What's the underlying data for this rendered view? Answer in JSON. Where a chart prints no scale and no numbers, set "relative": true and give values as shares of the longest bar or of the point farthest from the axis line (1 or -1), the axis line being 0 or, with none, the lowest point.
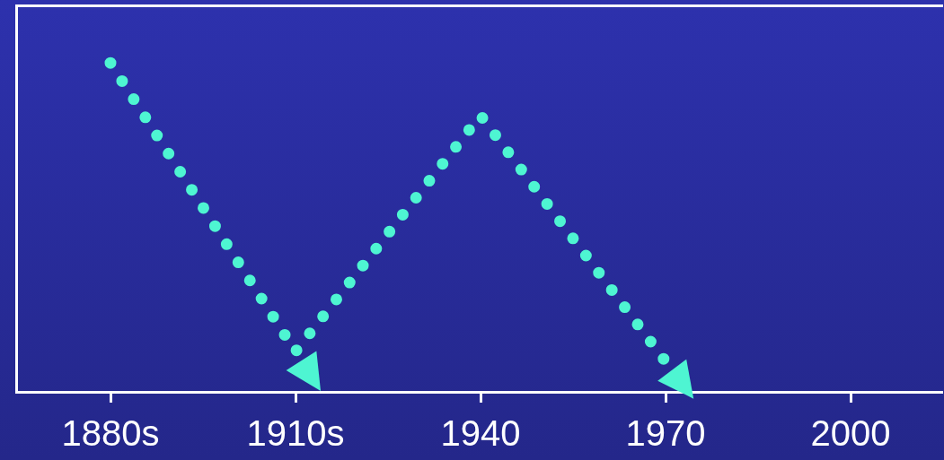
{
  "chart_data": {
    "type": "line",
    "relative": true,
    "categories": [
      "1880s",
      "1910s",
      "1940",
      "1970",
      "2000"
    ],
    "series": [
      {
        "color": "#4ef5d2",
        "values": [
          1,
          0.12,
          0.84,
          0.09,
          null
        ]
      }
    ],
    "line_style": "dotted",
    "marker": "none",
    "grid": false,
    "legend": false
  }
}
